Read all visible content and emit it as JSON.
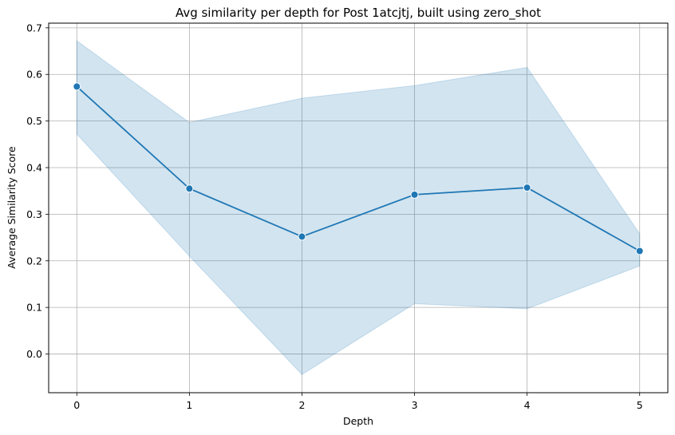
{
  "chart_data": {
    "type": "line",
    "title": "Avg similarity per depth for Post 1atcjtj, built using zero_shot",
    "xlabel": "Depth",
    "ylabel": "Average Similarity Score",
    "x": [
      0,
      1,
      2,
      3,
      4,
      5
    ],
    "series": [
      {
        "values": [
          0.574,
          0.355,
          0.252,
          0.342,
          0.357,
          0.221
        ],
        "ci_upper": [
          0.672,
          0.497,
          0.549,
          0.576,
          0.615,
          0.258
        ],
        "ci_lower": [
          0.472,
          0.21,
          -0.044,
          0.108,
          0.097,
          0.189
        ]
      }
    ],
    "xlim": [
      -0.25,
      5.25
    ],
    "ylim": [
      -0.083,
      0.71
    ],
    "xticks": [
      "0",
      "1",
      "2",
      "3",
      "4",
      "5"
    ],
    "yticks": [
      "0.0",
      "0.1",
      "0.2",
      "0.3",
      "0.4",
      "0.5",
      "0.6",
      "0.7"
    ],
    "grid": true,
    "colors": {
      "line": "#1f77b4",
      "band": "#1f77b4",
      "grid": "#b0b0b0"
    }
  }
}
